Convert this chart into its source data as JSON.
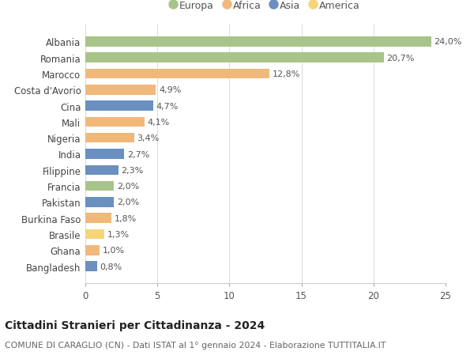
{
  "countries": [
    "Albania",
    "Romania",
    "Marocco",
    "Costa d'Avorio",
    "Cina",
    "Mali",
    "Nigeria",
    "India",
    "Filippine",
    "Francia",
    "Pakistan",
    "Burkina Faso",
    "Brasile",
    "Ghana",
    "Bangladesh"
  ],
  "values": [
    24.0,
    20.7,
    12.8,
    4.9,
    4.7,
    4.1,
    3.4,
    2.7,
    2.3,
    2.0,
    2.0,
    1.8,
    1.3,
    1.0,
    0.8
  ],
  "labels": [
    "24,0%",
    "20,7%",
    "12,8%",
    "4,9%",
    "4,7%",
    "4,1%",
    "3,4%",
    "2,7%",
    "2,3%",
    "2,0%",
    "2,0%",
    "1,8%",
    "1,3%",
    "1,0%",
    "0,8%"
  ],
  "colors": [
    "#a8c48a",
    "#a8c48a",
    "#f0b87a",
    "#f0b87a",
    "#6a8fc0",
    "#f0b87a",
    "#f0b87a",
    "#6a8fc0",
    "#6a8fc0",
    "#a8c48a",
    "#6a8fc0",
    "#f0b87a",
    "#f5d47a",
    "#f0b87a",
    "#6a8fc0"
  ],
  "legend_labels": [
    "Europa",
    "Africa",
    "Asia",
    "America"
  ],
  "legend_colors": [
    "#a8c48a",
    "#f0b87a",
    "#6a8fc0",
    "#f5d47a"
  ],
  "title": "Cittadini Stranieri per Cittadinanza - 2024",
  "subtitle": "COMUNE DI CARAGLIO (CN) - Dati ISTAT al 1° gennaio 2024 - Elaborazione TUTTITALIA.IT",
  "xlim": [
    0,
    25
  ],
  "xticks": [
    0,
    5,
    10,
    15,
    20,
    25
  ],
  "bg_color": "#ffffff",
  "grid_color": "#dddddd",
  "bar_height": 0.62,
  "label_fontsize": 8.0,
  "ytick_fontsize": 8.5,
  "xtick_fontsize": 8.5,
  "title_fontsize": 10.0,
  "subtitle_fontsize": 7.8,
  "legend_fontsize": 9.0
}
